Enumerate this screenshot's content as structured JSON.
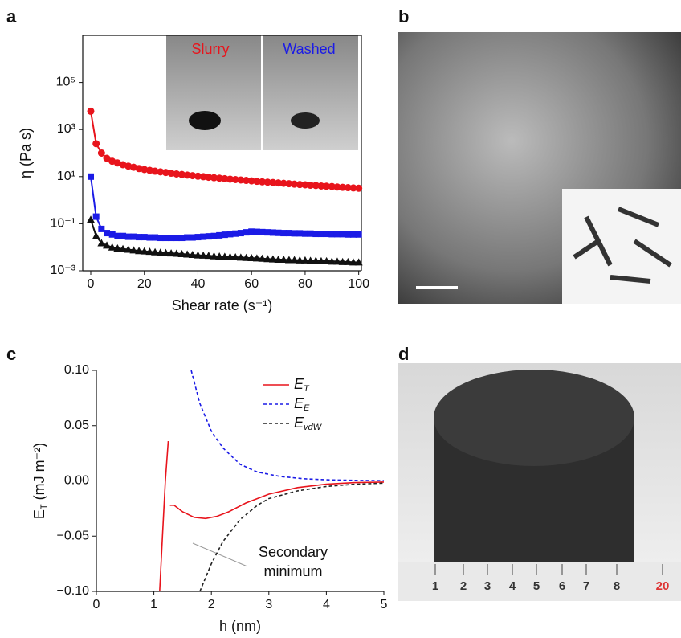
{
  "panel_labels": [
    "a",
    "b",
    "c",
    "d"
  ],
  "ruler_labels": [
    "1",
    "2",
    "3",
    "4",
    "5",
    "6",
    "7",
    "8",
    "20"
  ],
  "chart_data": [
    {
      "type": "line",
      "log_y": true,
      "frame": true,
      "xlabel": "Shear rate (s⁻¹)",
      "ylabel": "η (Pa s)",
      "xlim": [
        -3,
        101
      ],
      "xticks": [
        0,
        20,
        40,
        60,
        80,
        100
      ],
      "ylim": [
        0.001,
        10000000
      ],
      "yticks": [
        {
          "value": 0.001,
          "label": "10⁻³"
        },
        {
          "value": 0.1,
          "label": "10⁻¹"
        },
        {
          "value": 10,
          "label": "10¹"
        },
        {
          "value": 1000,
          "label": "10³"
        },
        {
          "value": 100000,
          "label": "10⁵"
        }
      ],
      "x": [
        0,
        2,
        4,
        6,
        8,
        10,
        12,
        14,
        16,
        18,
        20,
        22,
        24,
        26,
        28,
        30,
        32,
        34,
        36,
        38,
        40,
        42,
        44,
        46,
        48,
        50,
        52,
        54,
        56,
        58,
        60,
        62,
        64,
        66,
        68,
        70,
        72,
        74,
        76,
        78,
        80,
        82,
        84,
        86,
        88,
        90,
        92,
        94,
        96,
        98,
        100
      ],
      "series": [
        {
          "name": "Slurry",
          "color": "#e8141c",
          "marker": "circle",
          "values": [
            6000,
            250,
            100,
            60,
            45,
            38,
            32,
            28,
            25,
            22,
            20,
            18.5,
            17,
            16,
            15,
            14,
            13,
            12.3,
            11.6,
            11,
            10.4,
            9.9,
            9.4,
            9,
            8.6,
            8.2,
            7.8,
            7.5,
            7.2,
            6.9,
            6.6,
            6.3,
            6,
            5.8,
            5.6,
            5.4,
            5.2,
            5,
            4.8,
            4.6,
            4.5,
            4.3,
            4.2,
            4,
            3.9,
            3.8,
            3.6,
            3.5,
            3.4,
            3.3,
            3.2
          ]
        },
        {
          "name": "Washed",
          "color": "#1b1be6",
          "marker": "square",
          "values": [
            10,
            0.2,
            0.06,
            0.04,
            0.035,
            0.03,
            0.03,
            0.028,
            0.028,
            0.027,
            0.027,
            0.026,
            0.026,
            0.025,
            0.025,
            0.025,
            0.025,
            0.025,
            0.026,
            0.026,
            0.027,
            0.028,
            0.029,
            0.03,
            0.032,
            0.034,
            0.036,
            0.038,
            0.04,
            0.043,
            0.046,
            0.045,
            0.044,
            0.043,
            0.042,
            0.041,
            0.04,
            0.04,
            0.039,
            0.039,
            0.038,
            0.038,
            0.037,
            0.037,
            0.037,
            0.036,
            0.036,
            0.036,
            0.035,
            0.035,
            0.035
          ]
        },
        {
          "color": "#111111",
          "marker": "triangle",
          "values": [
            0.15,
            0.03,
            0.015,
            0.012,
            0.01,
            0.009,
            0.0085,
            0.008,
            0.0075,
            0.007,
            0.0068,
            0.0065,
            0.0062,
            0.006,
            0.0058,
            0.0056,
            0.0054,
            0.0052,
            0.005,
            0.0048,
            0.0046,
            0.0045,
            0.0044,
            0.0042,
            0.0041,
            0.004,
            0.0039,
            0.0038,
            0.0037,
            0.0036,
            0.0035,
            0.0034,
            0.0033,
            0.0032,
            0.0031,
            0.003,
            0.003,
            0.0029,
            0.0029,
            0.0028,
            0.0028,
            0.0027,
            0.0027,
            0.0026,
            0.0026,
            0.0025,
            0.0025,
            0.0024,
            0.0024,
            0.0023,
            0.0023
          ]
        }
      ]
    },
    {
      "type": "line",
      "log_y": false,
      "frame": false,
      "legend": "upper right",
      "xlabel": "h (nm)",
      "ylabel": "E_T (mJ m⁻²)",
      "xlim": [
        0,
        5
      ],
      "xticks": [
        0,
        1,
        2,
        3,
        4,
        5
      ],
      "ylim": [
        -0.1,
        0.1
      ],
      "yticks": [
        {
          "value": -0.1,
          "label": "−0.10"
        },
        {
          "value": -0.05,
          "label": "−0.05"
        },
        {
          "value": 0,
          "label": "0.00"
        },
        {
          "value": 0.05,
          "label": "0.05"
        },
        {
          "value": 0.1,
          "label": "0.10"
        }
      ],
      "annotation": [
        "Secondary",
        "minimum"
      ],
      "series": [
        {
          "name": "E_T",
          "color": "#e8141c",
          "dash": false,
          "x": [
            1.1,
            1.15,
            1.2,
            1.25,
            null,
            1.28,
            1.35,
            1.5,
            1.7,
            1.9,
            2.1,
            2.3,
            2.6,
            3,
            3.5,
            4,
            4.5,
            5
          ],
          "values": [
            -0.1,
            -0.05,
            0,
            0.036,
            null,
            -0.022,
            -0.022,
            -0.028,
            -0.033,
            -0.034,
            -0.032,
            -0.028,
            -0.02,
            -0.012,
            -0.006,
            -0.003,
            -0.0015,
            -0.001
          ]
        },
        {
          "name": "E_E",
          "color": "#1b1be6",
          "dash": true,
          "x": [
            1.65,
            1.8,
            2,
            2.2,
            2.5,
            2.8,
            3.2,
            3.6,
            4,
            4.5,
            5
          ],
          "values": [
            0.1,
            0.07,
            0.045,
            0.03,
            0.015,
            0.008,
            0.004,
            0.002,
            0.001,
            0.0005,
            0.0002
          ]
        },
        {
          "name": "E_vdW",
          "color": "#222222",
          "dash": true,
          "x": [
            1.8,
            2,
            2.2,
            2.5,
            2.8,
            3,
            3.5,
            4,
            4.5,
            5
          ],
          "values": [
            -0.1,
            -0.075,
            -0.055,
            -0.035,
            -0.022,
            -0.016,
            -0.009,
            -0.005,
            -0.003,
            -0.002
          ]
        }
      ]
    }
  ]
}
